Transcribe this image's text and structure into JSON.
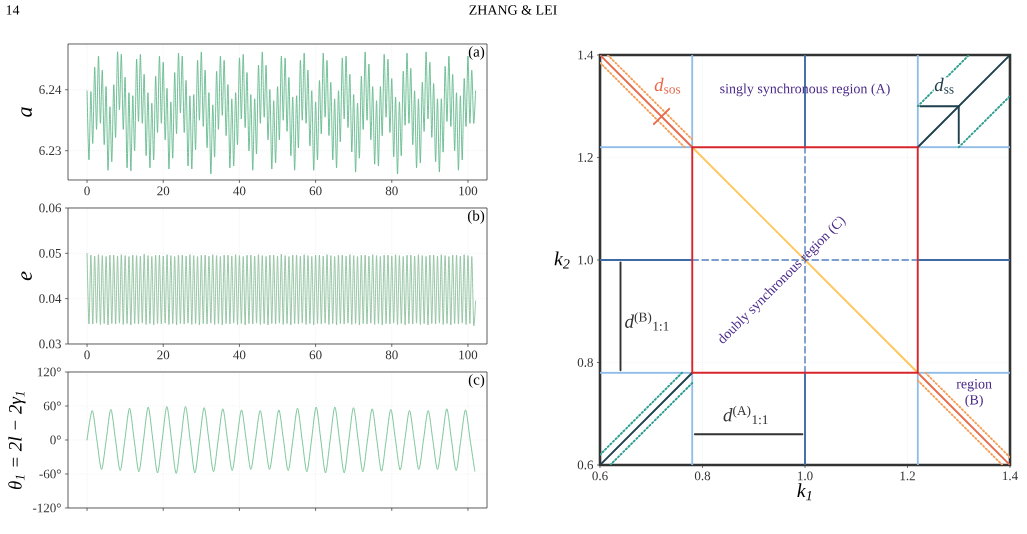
{
  "chart_data": [
    {
      "type": "line",
      "ylabel": "a",
      "xlim": [
        -5,
        105
      ],
      "ylim": [
        6.2252,
        6.2475
      ],
      "xticks": [
        0,
        20,
        40,
        60,
        80,
        100
      ],
      "yticks": [
        6.23,
        6.24
      ],
      "grid": true,
      "annotations": [
        "(a)",
        "14",
        "ZHANG & LEI"
      ],
      "x": [
        0,
        0.5,
        1,
        1.5,
        2,
        2.5,
        3,
        3.5,
        4,
        4.5,
        5,
        5.5,
        6,
        6.5,
        7,
        7.5,
        8,
        8.5,
        9,
        9.5,
        10,
        10.5,
        11,
        11.5,
        12,
        12.5,
        13,
        13.5,
        14,
        14.5,
        15,
        15.5,
        16,
        16.5,
        17,
        17.5,
        18,
        18.5,
        19,
        19.5,
        20,
        20.5,
        21,
        21.5,
        22,
        22.5,
        23,
        23.5,
        24,
        24.5,
        25,
        25.5,
        26,
        26.5,
        27,
        27.5,
        28,
        28.5,
        29,
        29.5,
        30,
        30.5,
        31,
        31.5,
        32,
        32.5,
        33,
        33.5,
        34,
        34.5,
        35,
        35.5,
        36,
        36.5,
        37,
        37.5,
        38,
        38.5,
        39,
        39.5,
        40,
        40.5,
        41,
        41.5,
        42,
        42.5,
        43,
        43.5,
        44,
        44.5,
        45,
        45.5,
        46,
        46.5,
        47,
        47.5,
        48,
        48.5,
        49,
        49.5,
        50,
        50.5,
        51,
        51.5,
        52,
        52.5,
        53,
        53.5,
        54,
        54.5,
        55,
        55.5,
        56,
        56.5,
        57,
        57.5,
        58,
        58.5,
        59,
        59.5,
        60,
        60.5,
        61,
        61.5,
        62,
        62.5,
        63,
        63.5,
        64,
        64.5,
        65,
        65.5,
        66,
        66.5,
        67,
        67.5,
        68,
        68.5,
        69,
        69.5,
        70,
        70.5,
        71,
        71.5,
        72,
        72.5,
        73,
        73.5,
        74,
        74.5,
        75,
        75.5,
        76,
        76.5,
        77,
        77.5,
        78,
        78.5,
        79,
        79.5,
        80,
        80.5,
        81,
        81.5,
        82,
        82.5,
        83,
        83.5,
        84,
        84.5,
        85,
        85.5,
        86,
        86.5,
        87,
        87.5,
        88,
        88.5,
        89,
        89.5,
        90,
        90.5,
        91,
        91.5,
        92,
        92.5,
        93,
        93.5,
        94,
        94.5,
        95,
        95.5,
        96,
        96.5,
        97,
        97.5,
        98,
        98.5,
        99,
        99.5,
        100,
        100.5,
        101,
        101.5,
        102
      ],
      "series": [
        {
          "color": "#62b98b",
          "values": [
            6.2398,
            6.2285,
            6.2397,
            6.2312,
            6.2437,
            6.2335,
            6.2455,
            6.2345,
            6.2432,
            6.231,
            6.2405,
            6.2268,
            6.2372,
            6.2282,
            6.2408,
            6.2322,
            6.2462,
            6.2367,
            6.2458,
            6.2335,
            6.242,
            6.2272,
            6.2395,
            6.2267,
            6.239,
            6.23,
            6.245,
            6.2348,
            6.2458,
            6.2345,
            6.2425,
            6.2292,
            6.2395,
            6.2272,
            6.2378,
            6.2285,
            6.2422,
            6.233,
            6.2455,
            6.2345,
            6.2445,
            6.2318,
            6.2402,
            6.227,
            6.238,
            6.2288,
            6.2428,
            6.2328,
            6.246,
            6.2362,
            6.2455,
            6.233,
            6.2415,
            6.2275,
            6.239,
            6.227,
            6.2392,
            6.2302,
            6.2448,
            6.235,
            6.2462,
            6.234,
            6.2432,
            6.2305,
            6.2395,
            6.2262,
            6.2375,
            6.229,
            6.243,
            6.2335,
            6.2455,
            6.2358,
            6.2448,
            6.2325,
            6.2408,
            6.2272,
            6.2385,
            6.2275,
            6.2395,
            6.231,
            6.2452,
            6.2352,
            6.2458,
            6.2338,
            6.2428,
            6.23,
            6.2392,
            6.2268,
            6.2385,
            6.2295,
            6.244,
            6.2345,
            6.2462,
            6.2355,
            6.244,
            6.2318,
            6.24,
            6.227,
            6.2382,
            6.228,
            6.2405,
            6.2318,
            6.2455,
            6.235,
            6.2452,
            6.2332,
            6.242,
            6.2292,
            6.2388,
            6.2268,
            6.239,
            6.2305,
            6.2448,
            6.235,
            6.246,
            6.2345,
            6.2432,
            6.2308,
            6.2398,
            6.2268,
            6.238,
            6.2285,
            6.2415,
            6.2328,
            6.246,
            6.2355,
            6.2448,
            6.2325,
            6.2412,
            6.2285,
            6.2385,
            6.2272,
            6.2398,
            6.2315,
            6.2452,
            6.2352,
            6.2455,
            6.2338,
            6.2425,
            6.2298,
            6.2392,
            6.2265,
            6.2378,
            6.2288,
            6.2422,
            6.2335,
            6.2462,
            6.235,
            6.2442,
            6.2318,
            6.2405,
            6.2278,
            6.2382,
            6.2275,
            6.2405,
            6.2325,
            6.2458,
            6.2355,
            6.245,
            6.233,
            6.2418,
            6.229,
            6.2388,
            6.2262,
            6.238,
            6.2292,
            6.243,
            6.2342,
            6.246,
            6.2345,
            6.2435,
            6.231,
            6.2398,
            6.2272,
            6.2385,
            6.228,
            6.2412,
            6.2332,
            6.2462,
            6.2352,
            6.2445,
            6.2322,
            6.241,
            6.2282,
            6.2385,
            6.2265,
            6.2385,
            6.2298,
            6.2438,
            6.2348,
            6.2455,
            6.234,
            6.2425,
            6.23,
            6.2395,
            6.2268,
            6.239,
            6.2285,
            6.2418,
            6.234,
            6.2455,
            6.2345,
            6.2432,
            6.2345,
            6.2398
          ]
        }
      ]
    },
    {
      "type": "line",
      "ylabel": "e",
      "xlim": [
        -5,
        105
      ],
      "ylim": [
        0.03,
        0.06
      ],
      "xticks": [
        0,
        20,
        40,
        60,
        80,
        100
      ],
      "yticks": [
        0.03,
        0.04,
        0.05,
        0.06
      ],
      "grid": true,
      "annotations": [
        "(b)"
      ],
      "x": [
        0,
        0.5,
        1,
        1.5,
        2,
        2.5,
        3,
        3.5,
        4,
        4.5,
        5,
        5.5,
        6,
        6.5,
        7,
        7.5,
        8,
        8.5,
        9,
        9.5,
        10,
        10.5,
        11,
        11.5,
        12,
        12.5,
        13,
        13.5,
        14,
        14.5,
        15,
        15.5,
        16,
        16.5,
        17,
        17.5,
        18,
        18.5,
        19,
        19.5,
        20,
        20.5,
        21,
        21.5,
        22,
        22.5,
        23,
        23.5,
        24,
        24.5,
        25,
        25.5,
        26,
        26.5,
        27,
        27.5,
        28,
        28.5,
        29,
        29.5,
        30,
        30.5,
        31,
        31.5,
        32,
        32.5,
        33,
        33.5,
        34,
        34.5,
        35,
        35.5,
        36,
        36.5,
        37,
        37.5,
        38,
        38.5,
        39,
        39.5,
        40,
        40.5,
        41,
        41.5,
        42,
        42.5,
        43,
        43.5,
        44,
        44.5,
        45,
        45.5,
        46,
        46.5,
        47,
        47.5,
        48,
        48.5,
        49,
        49.5,
        50,
        50.5,
        51,
        51.5,
        52,
        52.5,
        53,
        53.5,
        54,
        54.5,
        55,
        55.5,
        56,
        56.5,
        57,
        57.5,
        58,
        58.5,
        59,
        59.5,
        60,
        60.5,
        61,
        61.5,
        62,
        62.5,
        63,
        63.5,
        64,
        64.5,
        65,
        65.5,
        66,
        66.5,
        67,
        67.5,
        68,
        68.5,
        69,
        69.5,
        70,
        70.5,
        71,
        71.5,
        72,
        72.5,
        73,
        73.5,
        74,
        74.5,
        75,
        75.5,
        76,
        76.5,
        77,
        77.5,
        78,
        78.5,
        79,
        79.5,
        80,
        80.5,
        81,
        81.5,
        82,
        82.5,
        83,
        83.5,
        84,
        84.5,
        85,
        85.5,
        86,
        86.5,
        87,
        87.5,
        88,
        88.5,
        89,
        89.5,
        90,
        90.5,
        91,
        91.5,
        92,
        92.5,
        93,
        93.5,
        94,
        94.5,
        95,
        95.5,
        96,
        96.5,
        97,
        97.5,
        98,
        98.5,
        99,
        99.5,
        100,
        100.5,
        101,
        101.5,
        102
      ],
      "series": [
        {
          "color": "#8cbf9c",
          "values": [
            0.05,
            0.0344,
            0.0496,
            0.0344,
            0.0494,
            0.0346,
            0.0497,
            0.0343,
            0.0495,
            0.0345,
            0.0493,
            0.0342,
            0.0496,
            0.0345,
            0.0496,
            0.0344,
            0.0494,
            0.0346,
            0.0497,
            0.0343,
            0.0495,
            0.0345,
            0.0493,
            0.0342,
            0.0496,
            0.0345,
            0.0495,
            0.0344,
            0.0494,
            0.0346,
            0.0498,
            0.0343,
            0.0495,
            0.0345,
            0.0493,
            0.0342,
            0.0496,
            0.0345,
            0.0496,
            0.0344,
            0.0494,
            0.0346,
            0.0497,
            0.0343,
            0.0495,
            0.0345,
            0.0493,
            0.0342,
            0.0496,
            0.0345,
            0.0496,
            0.0344,
            0.0494,
            0.0346,
            0.0497,
            0.0343,
            0.0495,
            0.0345,
            0.0493,
            0.0342,
            0.0496,
            0.0345,
            0.0496,
            0.0344,
            0.0494,
            0.0346,
            0.0497,
            0.0343,
            0.0495,
            0.0345,
            0.0493,
            0.0342,
            0.0496,
            0.0345,
            0.0496,
            0.0344,
            0.0494,
            0.0346,
            0.0497,
            0.0343,
            0.0495,
            0.0345,
            0.0493,
            0.0342,
            0.0496,
            0.0345,
            0.0496,
            0.0344,
            0.0494,
            0.0346,
            0.0497,
            0.0343,
            0.0495,
            0.0345,
            0.0493,
            0.0342,
            0.0496,
            0.0345,
            0.0496,
            0.0344,
            0.0494,
            0.0346,
            0.0498,
            0.0343,
            0.0495,
            0.0345,
            0.0493,
            0.0342,
            0.0496,
            0.0345,
            0.0496,
            0.0344,
            0.0494,
            0.0346,
            0.0497,
            0.0343,
            0.0495,
            0.0345,
            0.0493,
            0.0342,
            0.0496,
            0.0345,
            0.0496,
            0.0344,
            0.0494,
            0.0346,
            0.0497,
            0.0343,
            0.0495,
            0.0345,
            0.0493,
            0.0342,
            0.0496,
            0.0345,
            0.0496,
            0.0344,
            0.0494,
            0.0346,
            0.0497,
            0.0343,
            0.0495,
            0.0345,
            0.0493,
            0.0342,
            0.0496,
            0.0345,
            0.0496,
            0.0344,
            0.0494,
            0.0346,
            0.0497,
            0.0343,
            0.0495,
            0.0345,
            0.0493,
            0.0342,
            0.0496,
            0.0345,
            0.0496,
            0.0344,
            0.0494,
            0.0346,
            0.0497,
            0.0343,
            0.0495,
            0.0345,
            0.0493,
            0.0342,
            0.0496,
            0.0345,
            0.0496,
            0.0344,
            0.0494,
            0.0346,
            0.0497,
            0.0343,
            0.0495,
            0.0345,
            0.0493,
            0.0342,
            0.0496,
            0.0345,
            0.0496,
            0.0344,
            0.0494,
            0.0346,
            0.0497,
            0.0343,
            0.0495,
            0.0345,
            0.0493,
            0.0342,
            0.0496,
            0.0345,
            0.0496,
            0.0344,
            0.0494,
            0.0346,
            0.0497,
            0.0343,
            0.0495,
            0.0345,
            0.0493,
            0.0342,
            0.0395
          ]
        }
      ]
    },
    {
      "type": "line",
      "ylabel": "θ$_{1}$ = 2l − 2γ$_{1}$",
      "xlim": [
        -5,
        105
      ],
      "ylim": [
        -120,
        120
      ],
      "xticks": [
        0,
        20,
        40,
        60,
        80,
        100
      ],
      "yticks": [
        {
          "value": -120,
          "label": "-120°"
        },
        {
          "value": -60,
          "label": "-60°"
        },
        {
          "value": 0,
          "label": "0°"
        },
        {
          "value": 60,
          "label": "60°"
        },
        {
          "value": 120,
          "label": "120°"
        }
      ],
      "grid": true,
      "tick_labels": "y",
      "annotations": [
        "(c)"
      ],
      "x": [
        0,
        1.35,
        2.575,
        3.8,
        5.025,
        6.25,
        7.475,
        8.7,
        9.925,
        11.15,
        12.375,
        13.6,
        14.825,
        16.05,
        17.275,
        18.5,
        19.725,
        20.95,
        22.175,
        23.4,
        24.625,
        25.85,
        27.075,
        28.3,
        29.525,
        30.75,
        31.975,
        33.2,
        34.425,
        35.65,
        36.875,
        38.1,
        39.325,
        40.55,
        41.775,
        43,
        44.225,
        45.45,
        46.675,
        47.9,
        49.125,
        50.35,
        51.575,
        52.8,
        54.025,
        55.25,
        56.475,
        57.7,
        58.925,
        60.15,
        61.375,
        62.6,
        63.825,
        65.05,
        66.275,
        67.5,
        68.725,
        69.95,
        71.175,
        72.4,
        73.625,
        74.85,
        76.075,
        77.3,
        78.525,
        79.75,
        80.975,
        82.2,
        83.425,
        84.65,
        85.875,
        87.1,
        88.325,
        89.55,
        90.775,
        92,
        93.225,
        94.45,
        95.675,
        96.9,
        98.125,
        99.35,
        100.575,
        101.8
      ],
      "series": [
        {
          "color": "#6cbf8f",
          "values": [
            0,
            52,
            0,
            -52,
            0,
            54,
            0,
            -54,
            0,
            56,
            0,
            -56,
            0,
            58,
            0,
            -58,
            0,
            59,
            0,
            -59,
            0,
            59,
            0,
            -58,
            0,
            57,
            0,
            -56,
            0,
            55,
            0,
            -54,
            0,
            53,
            0,
            -52,
            0,
            52,
            0,
            -52,
            0,
            53,
            0,
            -54,
            0,
            56,
            0,
            -56,
            0,
            58,
            0,
            -58,
            0,
            58,
            0,
            -58,
            0,
            57,
            0,
            -56,
            0,
            55,
            0,
            -55,
            0,
            54,
            0,
            -53,
            0,
            52,
            0,
            -52,
            0,
            52,
            0,
            -52,
            0,
            55,
            0,
            -54,
            0,
            53,
            0,
            -55
          ]
        }
      ]
    },
    {
      "type": "line",
      "xlabel": "k$_{1}$",
      "ylabel": "k$_{2}$",
      "xlim": [
        0.6,
        1.4
      ],
      "ylim": [
        0.6,
        1.4
      ],
      "xticks": [
        0.6,
        0.8,
        {
          "value": 1,
          "label": "1.0"
        },
        1.2,
        1.4
      ],
      "yticks": [
        0.6,
        0.8,
        {
          "value": 1,
          "label": "1.0"
        },
        1.2,
        1.4
      ],
      "grid": true,
      "annotations": [
        "*d*$_{sos}$",
        "singly synchronous region (A)",
        "doubly synchronous region (C)",
        "*d*$_{ss}$",
        "*d*$^{(B)}$$_{1:1}$",
        "*d*$^{(A)}$$_{1:1}$",
        "region (B)"
      ],
      "series": [
        {
          "color": "#90bce8",
          "x": [
            0.78,
            0.78
          ],
          "values": [
            0.6,
            0.78
          ]
        },
        {
          "color": "#90bce8",
          "x": [
            0.78,
            0.78
          ],
          "values": [
            1.22,
            1.4
          ]
        },
        {
          "color": "#90bce8",
          "x": [
            1.22,
            1.22
          ],
          "values": [
            0.6,
            0.78
          ]
        },
        {
          "color": "#90bce8",
          "x": [
            1.22,
            1.22
          ],
          "values": [
            1.22,
            1.4
          ]
        },
        {
          "color": "#90bce8",
          "x": [
            0.6,
            0.78
          ],
          "values": [
            0.78,
            0.78
          ]
        },
        {
          "color": "#90bce8",
          "x": [
            1.22,
            1.4
          ],
          "values": [
            0.78,
            0.78
          ]
        },
        {
          "color": "#90bce8",
          "x": [
            0.6,
            0.78
          ],
          "values": [
            1.22,
            1.22
          ]
        },
        {
          "color": "#90bce8",
          "x": [
            1.22,
            1.4
          ],
          "values": [
            1.22,
            1.22
          ]
        },
        {
          "color": "#3d6ba5",
          "x": [
            0.6,
            0.78
          ],
          "values": [
            1,
            1
          ]
        },
        {
          "color": "#3d6ba5",
          "x": [
            1.22,
            1.4
          ],
          "values": [
            1,
            1
          ]
        },
        {
          "color": "#3d6ba5",
          "x": [
            1,
            1
          ],
          "values": [
            0.6,
            0.78
          ]
        },
        {
          "color": "#3d6ba5",
          "x": [
            1,
            1
          ],
          "values": [
            1.22,
            1.4
          ]
        },
        {
          "color": "#7d9fcf",
          "line_style": "dashed",
          "x": [
            0.78,
            1.22
          ],
          "values": [
            1,
            1
          ]
        },
        {
          "color": "#7d9fcf",
          "line_style": "dashed",
          "x": [
            1,
            1
          ],
          "values": [
            0.78,
            1.22
          ]
        },
        {
          "color": "#f5a05a",
          "line_style": "dotted",
          "x": [
            0.615,
            0.78
          ],
          "values": [
            1.4,
            1.235
          ]
        },
        {
          "color": "#f5a05a",
          "line_style": "dotted",
          "x": [
            0.6,
            0.765
          ],
          "values": [
            1.385,
            1.22
          ]
        },
        {
          "color": "#f5a05a",
          "line_style": "dotted",
          "x": [
            1.235,
            1.4
          ],
          "values": [
            0.78,
            0.615
          ]
        },
        {
          "color": "#f5a05a",
          "line_style": "dotted",
          "x": [
            1.22,
            1.385
          ],
          "values": [
            0.765,
            0.6
          ]
        },
        {
          "color": "#2a9d8f",
          "line_style": "dotted",
          "x": [
            1.22,
            1.32
          ],
          "values": [
            1.3,
            1.4
          ]
        },
        {
          "color": "#2a9d8f",
          "line_style": "dotted",
          "x": [
            1.3,
            1.4
          ],
          "values": [
            1.22,
            1.32
          ]
        },
        {
          "color": "#2a9d8f",
          "line_style": "dotted",
          "x": [
            0.6,
            0.76
          ],
          "values": [
            0.62,
            0.78
          ]
        },
        {
          "color": "#2a9d8f",
          "line_style": "dotted",
          "x": [
            0.62,
            0.78
          ],
          "values": [
            0.6,
            0.76
          ]
        },
        {
          "color": "#1e3f4c",
          "x": [
            0.6,
            0.78
          ],
          "values": [
            0.6,
            0.78
          ]
        },
        {
          "color": "#1e3f4c",
          "x": [
            1.22,
            1.4
          ],
          "values": [
            1.22,
            1.4
          ]
        },
        {
          "color": "#e96a4b",
          "x": [
            0.6,
            0.78
          ],
          "values": [
            1.4,
            1.22
          ]
        },
        {
          "color": "#e96a4b",
          "x": [
            1.22,
            1.4
          ],
          "values": [
            0.78,
            0.6
          ]
        },
        {
          "color": "#ffc65a",
          "x": [
            0.78,
            1.22
          ],
          "values": [
            1.22,
            0.78
          ]
        },
        {
          "color": "#d7262b",
          "x": [
            0.78,
            1.22
          ],
          "values": [
            0.78,
            0.78
          ]
        },
        {
          "color": "#d7262b",
          "x": [
            0.78,
            1.22
          ],
          "values": [
            1.22,
            1.22
          ]
        },
        {
          "color": "#d7262b",
          "x": [
            0.78,
            0.78
          ],
          "values": [
            0.78,
            1.22
          ]
        },
        {
          "color": "#d7262b",
          "x": [
            1.22,
            1.22
          ],
          "values": [
            0.78,
            1.22
          ]
        },
        {
          "color": "#1e3f4c",
          "x": [
            1.3,
            1.225
          ],
          "values": [
            1.3,
            1.3
          ]
        },
        {
          "color": "#1e3f4c",
          "x": [
            1.3,
            1.3
          ],
          "values": [
            1.3,
            1.228
          ]
        },
        {
          "color": "#e96a4b",
          "x": [
            0.705,
            0.735
          ],
          "values": [
            1.265,
            1.295
          ]
        },
        {
          "color": "#333333",
          "x": [
            0.64,
            0.64
          ],
          "values": [
            0.995,
            0.785
          ]
        },
        {
          "color": "#333333",
          "x": [
            0.785,
            0.995
          ],
          "values": [
            0.66,
            0.66
          ]
        }
      ]
    }
  ]
}
